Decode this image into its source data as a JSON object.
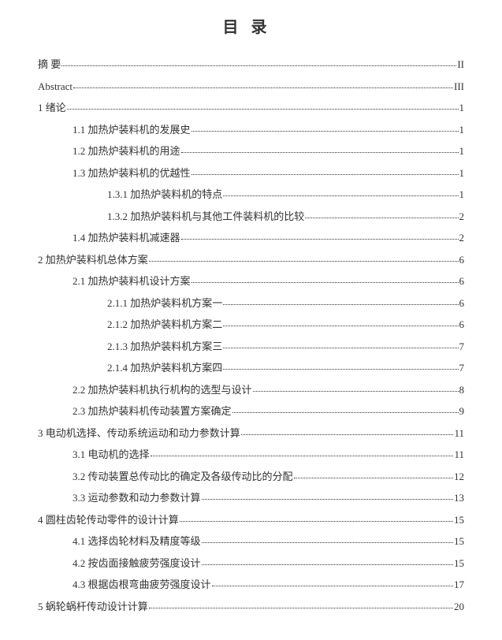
{
  "title": "目录",
  "entries": [
    {
      "label": "摘 要",
      "page": "II",
      "level": 0,
      "spaced": false
    },
    {
      "label": "Abstract",
      "page": "III",
      "level": 0,
      "spaced": false
    },
    {
      "label": "1 绪论",
      "page": "1",
      "level": 0,
      "spaced": false
    },
    {
      "label": "1.1 加热炉装料机的发展史",
      "page": "1",
      "level": 1,
      "spaced": false
    },
    {
      "label": "1.2 加热炉装料机的用途",
      "page": "1",
      "level": 1,
      "spaced": false
    },
    {
      "label": "1.3 加热炉装料机的优越性",
      "page": "1",
      "level": 1,
      "spaced": false
    },
    {
      "label": "1.3.1 加热炉装料机的特点",
      "page": "1",
      "level": 2,
      "spaced": false
    },
    {
      "label": "1.3.2 加热炉装料机与其他工件装料机的比较",
      "page": "2",
      "level": 2,
      "spaced": false
    },
    {
      "label": "1.4 加热炉装料机减速器",
      "page": "2",
      "level": 1,
      "spaced": false
    },
    {
      "label": "2 加热炉装料机总体方案",
      "page": "6",
      "level": 0,
      "spaced": false
    },
    {
      "label": "2.1 加热炉装料机设计方案",
      "page": "6",
      "level": 1,
      "spaced": false
    },
    {
      "label": "2.1.1 加热炉装料机方案一",
      "page": "6",
      "level": 2,
      "spaced": false
    },
    {
      "label": "2.1.2 加热炉装料机方案二",
      "page": "6",
      "level": 2,
      "spaced": false
    },
    {
      "label": "2.1.3 加热炉装料机方案三",
      "page": "7",
      "level": 2,
      "spaced": false
    },
    {
      "label": "2.1.4 加热炉装料机方案四",
      "page": "7",
      "level": 2,
      "spaced": false
    },
    {
      "label": "2.2 加热炉装料机执行机构的选型与设计",
      "page": "8",
      "level": 1,
      "spaced": false
    },
    {
      "label": "2.3 加热炉装料机传动装置方案确定",
      "page": "9",
      "level": 1,
      "spaced": false
    },
    {
      "label": "3 电动机选择、传动系统运动和动力参数计算",
      "page": "11",
      "level": 0,
      "spaced": false
    },
    {
      "label": "3.1 电动机的选择",
      "page": "11",
      "level": 1,
      "spaced": false
    },
    {
      "label": "3.2 传动装置总传动比的确定及各级传动比的分配",
      "page": "12",
      "level": 1,
      "spaced": false
    },
    {
      "label": "3.3 运动参数和动力参数计算",
      "page": "13",
      "level": 1,
      "spaced": false
    },
    {
      "label": "4 圆柱齿轮传动零件的设计计算",
      "page": "15",
      "level": 0,
      "spaced": false
    },
    {
      "label": "4.1 选择齿轮材料及精度等级",
      "page": "15",
      "level": 1,
      "spaced": false
    },
    {
      "label": "4.2 按齿面接触疲劳强度设计",
      "page": "15",
      "level": 1,
      "spaced": false
    },
    {
      "label": "4.3 根据齿根弯曲疲劳强度设计",
      "page": "17",
      "level": 1,
      "spaced": false
    },
    {
      "label": "5 蜗轮蜗杆传动设计计算",
      "page": "20",
      "level": 0,
      "spaced": false
    }
  ]
}
